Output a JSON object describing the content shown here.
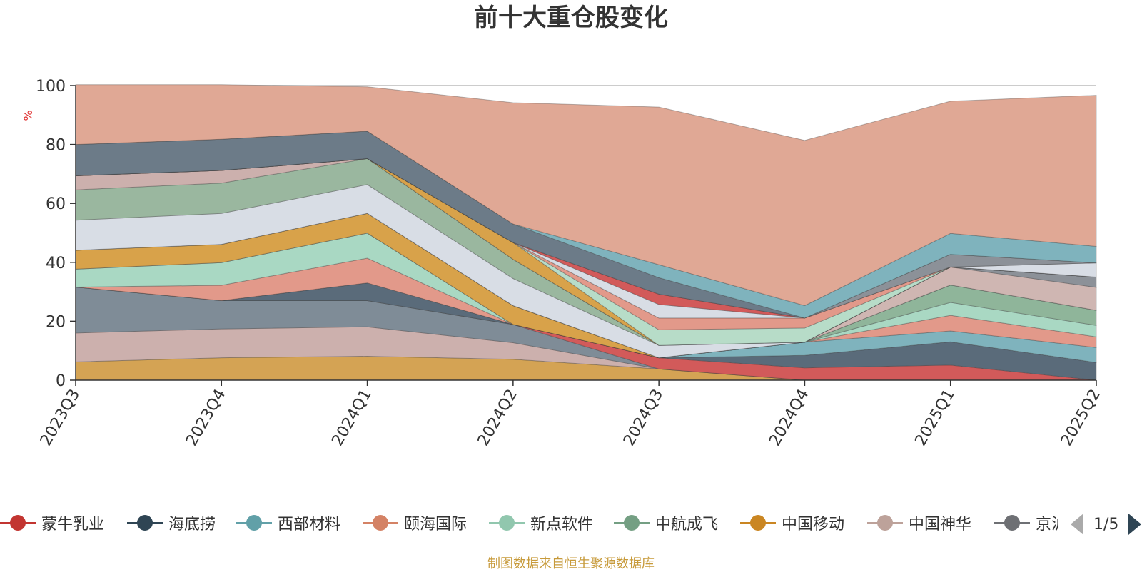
{
  "title": "前十大重仓股变化",
  "footer": "制图数据来自恒生聚源数据库",
  "legend_page": "1/5",
  "chart_data": {
    "type": "area",
    "stacked": true,
    "x": [
      "2023Q3",
      "2023Q4",
      "2024Q1",
      "2024Q2",
      "2024Q3",
      "2024Q4",
      "2025Q1",
      "2025Q2"
    ],
    "ylabel": "%",
    "ylim": [
      0,
      100
    ],
    "yticks": [
      0,
      20,
      40,
      60,
      80,
      100
    ],
    "grid": true,
    "legend_position": "bottom",
    "series": [
      {
        "name": "",
        "color": "#d4a354",
        "values": [
          6.2,
          7.6,
          8.1,
          7.1,
          3.8,
          0,
          0,
          0
        ]
      },
      {
        "name": "",
        "color": "#ccb0ad",
        "values": [
          9.8,
          9.8,
          10.0,
          5.6,
          0,
          0,
          0,
          0
        ]
      },
      {
        "name": "",
        "color": "#7f8c97",
        "values": [
          15.6,
          9.6,
          8.9,
          6.2,
          0,
          0,
          0,
          0
        ]
      },
      {
        "name": "蒙牛乳业",
        "color": "#d25a5a",
        "values": [
          0,
          0,
          0,
          0,
          3.8,
          4.2,
          5.1,
          0
        ]
      },
      {
        "name": "海底捞",
        "color": "#5a6b7a",
        "values": [
          0,
          0,
          6.0,
          0,
          0,
          4.2,
          7.9,
          6.0
        ]
      },
      {
        "name": "西部材料",
        "color": "#7fb3bd",
        "values": [
          0,
          0,
          0,
          0,
          0,
          4.5,
          3.7,
          5.1
        ]
      },
      {
        "name": "颐海国际",
        "color": "#e2998a",
        "values": [
          0,
          5.2,
          8.4,
          0,
          0,
          0,
          5.3,
          3.6
        ]
      },
      {
        "name": "新点软件",
        "color": "#a9d8c3",
        "values": [
          6.1,
          7.7,
          8.5,
          0,
          0,
          0,
          4.4,
          3.9
        ]
      },
      {
        "name": "中航成飞",
        "color": "#8fb59a",
        "values": [
          0,
          0,
          0,
          0,
          0,
          0,
          5.9,
          5.1
        ]
      },
      {
        "name": "中国移动",
        "color": "#d8a24a",
        "values": [
          6.4,
          6.2,
          6.7,
          6.4,
          0,
          0,
          0,
          0
        ]
      },
      {
        "name": "中国神华",
        "color": "#cfb6b2",
        "values": [
          0,
          0,
          0,
          0,
          0,
          0,
          6.1,
          7.8
        ]
      },
      {
        "name": "京沪高铁",
        "color": "#8c9198",
        "values": [
          0,
          0,
          0,
          0,
          0,
          0,
          0,
          3.5
        ]
      },
      {
        "name": "",
        "color": "#d8dde5",
        "values": [
          10.2,
          10.5,
          9.8,
          9.2,
          4.2,
          0,
          0,
          0
        ]
      },
      {
        "name": "",
        "color": "#9ab79f",
        "values": [
          10.3,
          10.3,
          8.8,
          6.5,
          0,
          0,
          0,
          0
        ]
      },
      {
        "name": "",
        "color": "#ccb0ad",
        "values": [
          4.8,
          4.3,
          0,
          0,
          0,
          0,
          0,
          0
        ]
      },
      {
        "name": "",
        "color": "#d8a24a",
        "values": [
          0,
          0,
          0,
          5.7,
          0,
          0,
          0,
          0
        ]
      },
      {
        "name": "",
        "color": "#b7dcc8",
        "values": [
          0,
          0,
          0,
          0,
          5.3,
          4.8,
          0,
          0
        ]
      },
      {
        "name": "",
        "color": "#e2998a",
        "values": [
          0,
          0,
          0,
          0,
          4.0,
          3.4,
          0,
          0
        ]
      },
      {
        "name": "",
        "color": "#d8dde5",
        "values": [
          0,
          0,
          0,
          0,
          4.6,
          0,
          0,
          4.8
        ]
      },
      {
        "name": "",
        "color": "#d25a5a",
        "values": [
          0,
          0,
          0,
          0,
          3.5,
          0,
          0,
          0
        ]
      },
      {
        "name": "",
        "color": "#8c9198",
        "values": [
          0,
          0,
          0,
          0,
          0,
          0,
          4.3,
          0
        ]
      },
      {
        "name": "",
        "color": "#6c7b88",
        "values": [
          10.6,
          10.6,
          9.3,
          6.3,
          5.6,
          0,
          0,
          0
        ]
      },
      {
        "name": "",
        "color": "#7fb3bd",
        "values": [
          0,
          0,
          0,
          0,
          4.4,
          4.2,
          7.1,
          5.6
        ]
      },
      {
        "name": "",
        "color": "#e0a895",
        "values": [
          20.3,
          18.5,
          15.1,
          41.2,
          53.5,
          56.1,
          44.9,
          51.3
        ]
      }
    ]
  },
  "legend": [
    {
      "label": "蒙牛乳业",
      "color": "#c23531",
      "marker_icon": "circle-icon"
    },
    {
      "label": "海底捞",
      "color": "#2f4554",
      "marker_icon": "circle-icon"
    },
    {
      "label": "西部材料",
      "color": "#61a0a8",
      "marker_icon": "circle-icon"
    },
    {
      "label": "颐海国际",
      "color": "#d48265",
      "marker_icon": "circle-icon"
    },
    {
      "label": "新点软件",
      "color": "#91c7ae",
      "marker_icon": "circle-icon"
    },
    {
      "label": "中航成飞",
      "color": "#749f83",
      "marker_icon": "circle-icon"
    },
    {
      "label": "中国移动",
      "color": "#ca8622",
      "marker_icon": "circle-icon"
    },
    {
      "label": "中国神华",
      "color": "#bda29a",
      "marker_icon": "circle-icon"
    },
    {
      "label": "京沪高铁",
      "color": "#6e7074",
      "marker_icon": "circle-icon"
    }
  ]
}
